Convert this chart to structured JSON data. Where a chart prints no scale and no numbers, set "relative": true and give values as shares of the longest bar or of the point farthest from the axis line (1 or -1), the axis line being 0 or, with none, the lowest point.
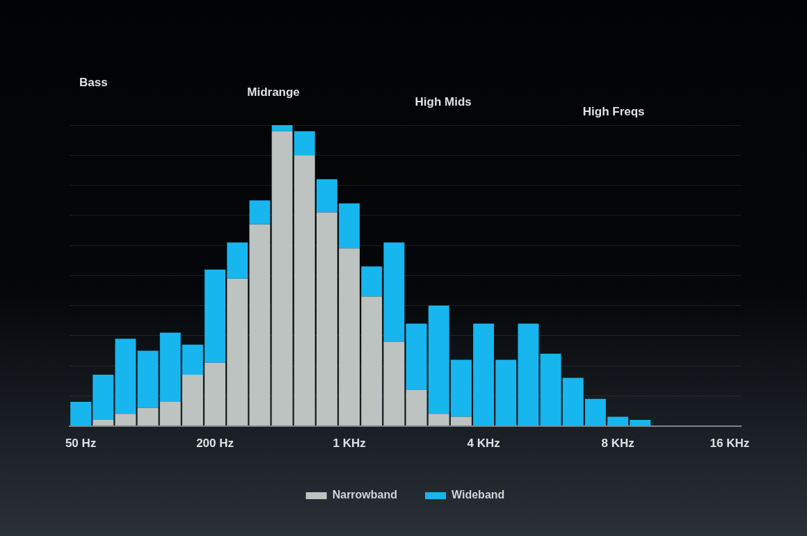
{
  "chart_data": {
    "type": "bar",
    "relative": true,
    "stacked": true,
    "categories": [
      "50 Hz",
      null,
      null,
      null,
      null,
      null,
      "200 Hz",
      null,
      null,
      null,
      null,
      null,
      "1 KHz",
      null,
      null,
      null,
      null,
      null,
      "4 KHz",
      null,
      null,
      null,
      null,
      null,
      "8 KHz",
      null,
      null,
      null,
      null,
      "16 KHz"
    ],
    "series": [
      {
        "name": "Narrowband",
        "color": "#bcc3c0",
        "values": [
          null,
          0.02,
          0.04,
          0.06,
          0.08,
          0.17,
          0.21,
          0.49,
          0.67,
          0.98,
          0.9,
          0.71,
          0.59,
          0.43,
          0.28,
          0.12,
          0.04,
          0.03,
          null,
          null,
          null,
          null,
          null,
          null,
          null,
          null,
          null,
          null,
          null,
          null
        ]
      },
      {
        "name": "Wideband",
        "color": "#17b6ef",
        "values": [
          0.08,
          0.15,
          0.25,
          0.19,
          0.23,
          0.1,
          0.31,
          0.12,
          0.08,
          0.02,
          0.08,
          0.11,
          0.15,
          0.1,
          0.33,
          0.22,
          0.36,
          0.19,
          0.34,
          0.22,
          0.34,
          0.24,
          0.16,
          0.09,
          0.03,
          0.02,
          null,
          null,
          null,
          null
        ]
      }
    ],
    "annotations": [
      "Bass",
      "Midrange",
      "High Mids",
      "High Freqs"
    ],
    "grid": "y",
    "legend": "bottom"
  }
}
